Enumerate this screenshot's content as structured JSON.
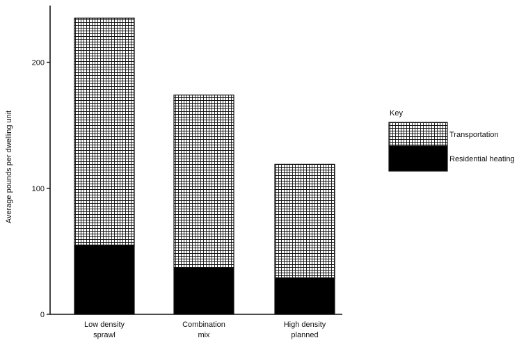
{
  "chart_data": {
    "type": "bar",
    "stacked": true,
    "categories": [
      [
        "Low density",
        "sprawl"
      ],
      [
        "Combination",
        "mix"
      ],
      [
        "High density",
        "planned"
      ]
    ],
    "series": [
      {
        "name": "Residential heating",
        "values": [
          55,
          37,
          29
        ],
        "color": "#000000",
        "pattern": "solid"
      },
      {
        "name": "Transportation",
        "values": [
          180,
          137,
          90
        ],
        "color": "#000000",
        "pattern": "grid"
      }
    ],
    "xlabel": "",
    "ylabel": "Average pounds per dwelling unit",
    "ylim": [
      0,
      245
    ],
    "yticks": [
      0,
      100,
      200
    ],
    "grid": false,
    "legend": {
      "title": "Key",
      "placement": "right",
      "entries": [
        "Transportation",
        "Residential heating"
      ]
    }
  }
}
